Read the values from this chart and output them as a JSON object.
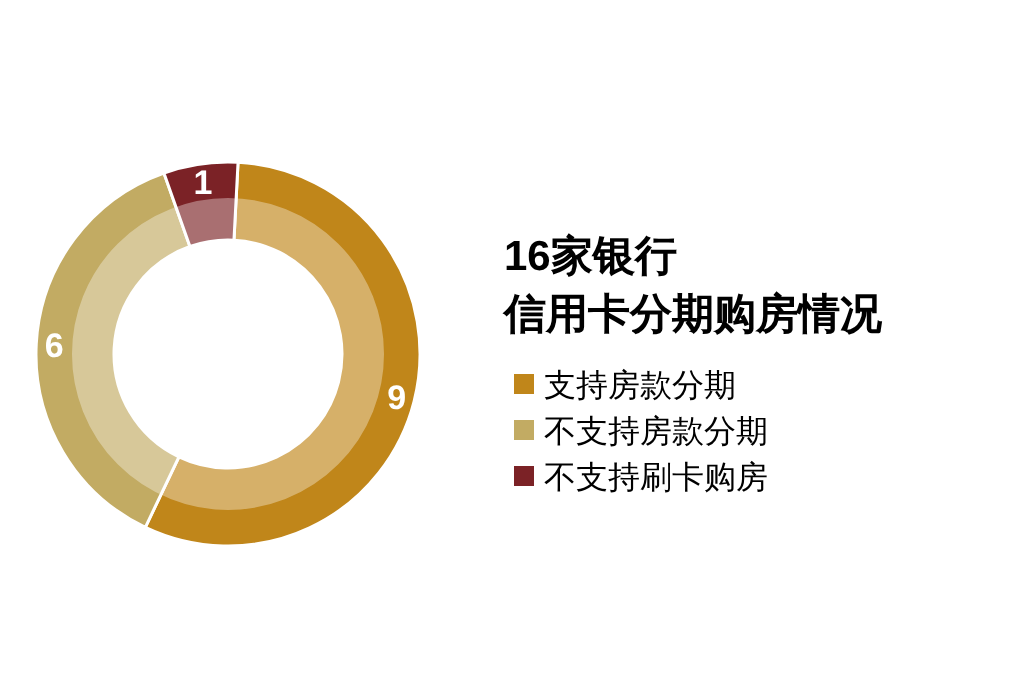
{
  "chart_data": {
    "type": "donut",
    "title": "16家银行",
    "subtitle": "信用卡分期购房情况",
    "categories": [
      "支持房款分期",
      "不支持房款分期",
      "不支持刷卡购房"
    ],
    "values": [
      9,
      6,
      1
    ],
    "colors": [
      "#c0861a",
      "#c2ab63",
      "#7b2226"
    ],
    "data_labels": true,
    "legend": "right"
  }
}
